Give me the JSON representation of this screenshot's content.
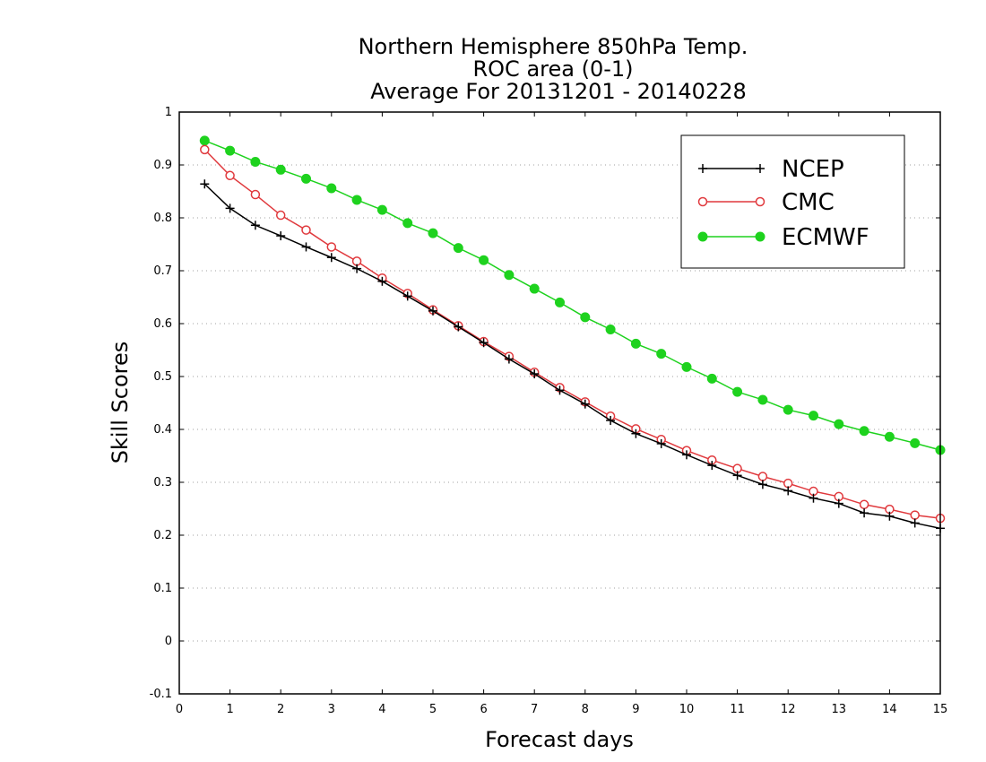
{
  "chart_data": {
    "type": "line",
    "title_lines": [
      "Northern Hemisphere 850hPa Temp.",
      "ROC area (0-1)",
      "Average For 20131201 - 20140228"
    ],
    "xlabel": "Forecast days",
    "ylabel": "Skill Scores",
    "xlim": [
      0,
      15
    ],
    "ylim": [
      -0.1,
      1
    ],
    "x_ticks": [
      0,
      1,
      2,
      3,
      4,
      5,
      6,
      7,
      8,
      9,
      10,
      11,
      12,
      13,
      14,
      15
    ],
    "y_ticks": [
      -0.1,
      0,
      0.1,
      0.2,
      0.3,
      0.4,
      0.5,
      0.6,
      0.7,
      0.8,
      0.9,
      1
    ],
    "y_tick_labels": [
      "-0.1",
      "0",
      "0.1",
      "0.2",
      "0.3",
      "0.4",
      "0.5",
      "0.6",
      "0.7",
      "0.8",
      "0.9",
      "1"
    ],
    "grid": "horizontal-dotted",
    "legend_position": "top-right",
    "x": [
      0.5,
      1,
      1.5,
      2,
      2.5,
      3,
      3.5,
      4,
      4.5,
      5,
      5.5,
      6,
      6.5,
      7,
      7.5,
      8,
      8.5,
      9,
      9.5,
      10,
      10.5,
      11,
      11.5,
      12,
      12.5,
      13,
      13.5,
      14,
      14.5,
      15
    ],
    "series": [
      {
        "name": "NCEP",
        "color": "#000000",
        "marker": "plus",
        "values": [
          0.864,
          0.818,
          0.786,
          0.766,
          0.745,
          0.725,
          0.704,
          0.68,
          0.652,
          0.624,
          0.594,
          0.564,
          0.533,
          0.505,
          0.474,
          0.448,
          0.417,
          0.392,
          0.373,
          0.352,
          0.332,
          0.313,
          0.296,
          0.284,
          0.27,
          0.26,
          0.242,
          0.236,
          0.223,
          0.213
        ]
      },
      {
        "name": "CMC",
        "color": "#e0393d",
        "marker": "open-circle",
        "values": [
          0.929,
          0.88,
          0.844,
          0.805,
          0.777,
          0.745,
          0.718,
          0.686,
          0.657,
          0.626,
          0.596,
          0.566,
          0.538,
          0.508,
          0.479,
          0.452,
          0.425,
          0.401,
          0.381,
          0.36,
          0.342,
          0.326,
          0.311,
          0.298,
          0.283,
          0.273,
          0.258,
          0.249,
          0.238,
          0.232
        ]
      },
      {
        "name": "ECMWF",
        "color": "#1ed21e",
        "marker": "filled-circle",
        "values": [
          0.946,
          0.927,
          0.906,
          0.891,
          0.874,
          0.856,
          0.834,
          0.815,
          0.79,
          0.771,
          0.743,
          0.72,
          0.692,
          0.666,
          0.64,
          0.612,
          0.589,
          0.562,
          0.543,
          0.518,
          0.496,
          0.471,
          0.456,
          0.437,
          0.426,
          0.41,
          0.397,
          0.386,
          0.374,
          0.361
        ]
      }
    ]
  }
}
